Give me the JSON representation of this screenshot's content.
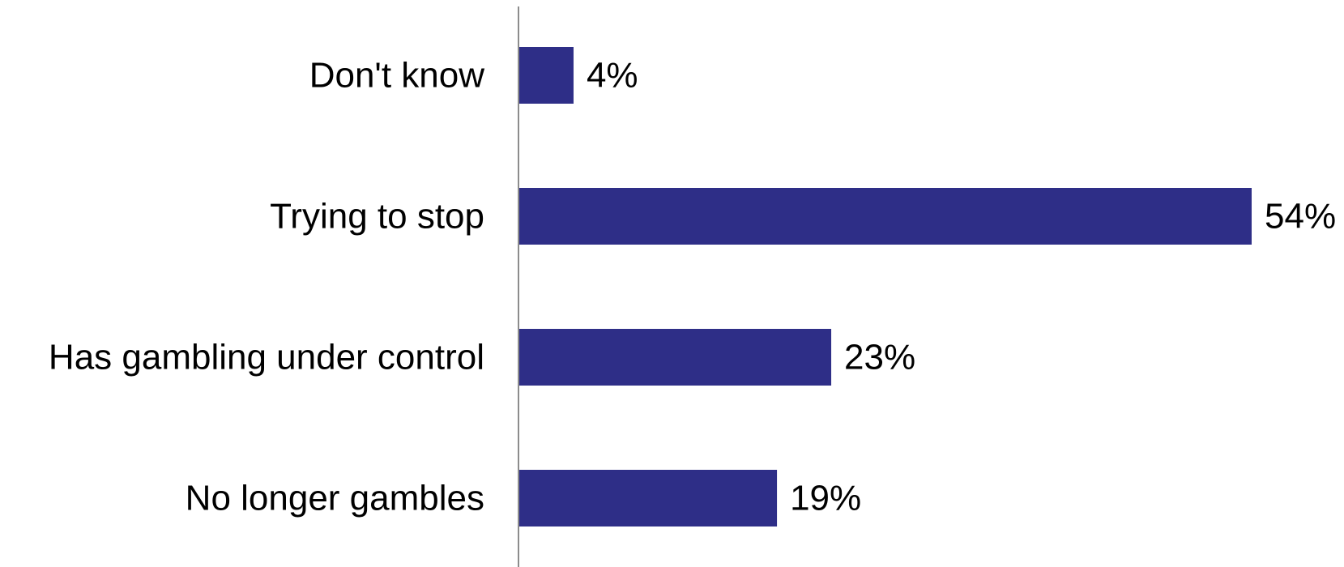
{
  "chart_data": {
    "type": "bar",
    "orientation": "horizontal",
    "categories": [
      "Don't know",
      "Trying to stop",
      "Has gambling under control",
      "No longer gambles"
    ],
    "values": [
      4,
      54,
      23,
      19
    ],
    "value_labels": [
      "4%",
      "54%",
      "23%",
      "19%"
    ],
    "unit": "%",
    "xlim": [
      0,
      54
    ],
    "grid": false,
    "legend": "none",
    "bar_color": "#2e2e87"
  }
}
